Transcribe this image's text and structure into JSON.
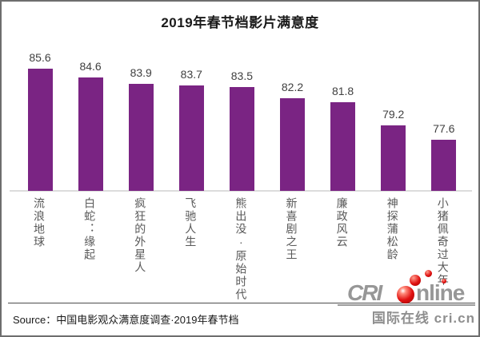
{
  "chart_data": {
    "type": "bar",
    "title": "2019年春节档影片满意度",
    "categories": [
      "流浪地球",
      "白蛇：缘起",
      "疯狂的外星人",
      "飞驰人生",
      "熊出没·原始时代",
      "新喜剧之王",
      "廉政风云",
      "神探蒲松龄",
      "小猪佩奇过大年"
    ],
    "values": [
      85.6,
      84.6,
      83.9,
      83.7,
      83.5,
      82.2,
      81.8,
      79.2,
      77.6
    ],
    "xlabel": "",
    "ylabel": "",
    "ylim": [
      71.8,
      87
    ],
    "grid": "off",
    "legend": "none",
    "bar_color": "#7A2483",
    "value_label_color": "#404040",
    "category_label_color": "#595959"
  },
  "source": {
    "label": "Source：中国电影观众满意度调查·2019年春节档"
  },
  "logo": {
    "cri": "CRI",
    "nline": "nline",
    "subtext": "国际在线 cri.cn",
    "gray": "#979797",
    "red": "#e01010"
  }
}
